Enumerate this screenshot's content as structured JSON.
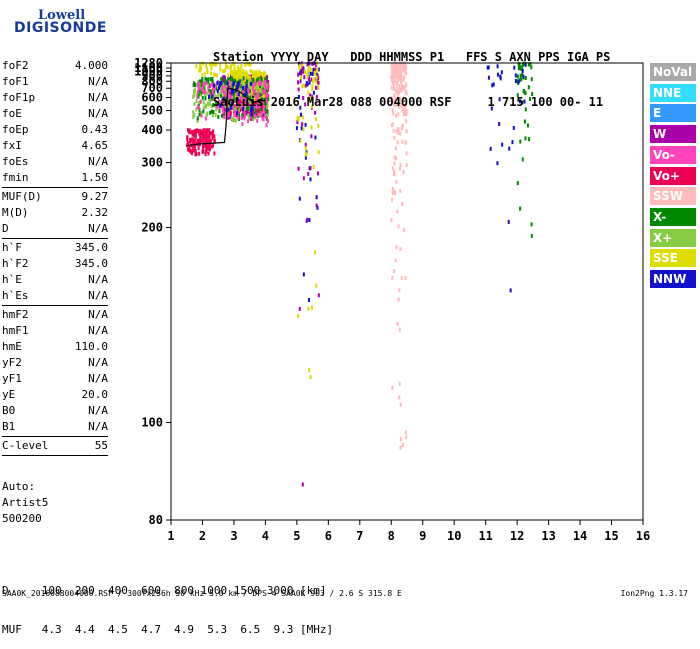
{
  "logo": {
    "line1": "Lowell",
    "line2": "DIGISONDE"
  },
  "header": {
    "line1": "Station YYYY DAY   DDD HHMMSS P1   FFS S AXN PPS IGA PS",
    "line2": "SaoLuis 2016 Mar28 088 004000 RSF     1 715 100 00- 11"
  },
  "params": [
    {
      "name": "foF2",
      "value": "4.000"
    },
    {
      "name": "foF1",
      "value": "N/A"
    },
    {
      "name": "foF1p",
      "value": "N/A"
    },
    {
      "name": "foE",
      "value": "N/A"
    },
    {
      "name": "foEp",
      "value": "0.43"
    },
    {
      "name": "fxI",
      "value": "4.65"
    },
    {
      "name": "foEs",
      "value": "N/A"
    },
    {
      "name": "fmin",
      "value": "1.50"
    },
    {
      "sep": true
    },
    {
      "name": "MUF(D)",
      "value": "9.27"
    },
    {
      "name": "M(D)",
      "value": "2.32"
    },
    {
      "name": "D",
      "value": "N/A"
    },
    {
      "sep": true
    },
    {
      "name": "h`F",
      "value": "345.0"
    },
    {
      "name": "h`F2",
      "value": "345.0"
    },
    {
      "name": "h`E",
      "value": "N/A"
    },
    {
      "name": "h`Es",
      "value": "N/A"
    },
    {
      "sep": true
    },
    {
      "name": "hmF2",
      "value": "N/A"
    },
    {
      "name": "hmF1",
      "value": "N/A"
    },
    {
      "name": "hmE",
      "value": "110.0"
    },
    {
      "name": "yF2",
      "value": "N/A"
    },
    {
      "name": "yF1",
      "value": "N/A"
    },
    {
      "name": "yE",
      "value": "20.0"
    },
    {
      "name": "B0",
      "value": "N/A"
    },
    {
      "name": "B1",
      "value": "N/A"
    },
    {
      "sep": true
    },
    {
      "name": "C-level",
      "value": "55"
    },
    {
      "sep": true
    }
  ],
  "auto": {
    "line1": "Auto:",
    "line2": "Artist5",
    "line3": "500200"
  },
  "dtable": {
    "row1": "D     100  200  400  600  800 1000 1500 3000 [km]",
    "row2": "MUF   4.3  4.4  4.5  4.7  4.9  5.3  6.5  9.3 [MHz]"
  },
  "footer": {
    "left": "SAA0K_2016088004000.RSF / 300fx256h 50 kHz 5.0 km / DPS-4 SAA0K 903 / 2.6 S 315.8 E",
    "right": "Ion2Png 1.3.17"
  },
  "legend": [
    {
      "label": "NoVal",
      "color": "#a9a9a9"
    },
    {
      "label": "NNE",
      "color": "#33ddff"
    },
    {
      "label": "E",
      "color": "#3399ff"
    },
    {
      "label": "W",
      "color": "#aa00aa"
    },
    {
      "label": "Vo-",
      "color": "#ff44bb"
    },
    {
      "label": "Vo+",
      "color": "#ee0055"
    },
    {
      "label": "SSW",
      "color": "#ffbbbb"
    },
    {
      "label": "X-",
      "color": "#008800"
    },
    {
      "label": "X+",
      "color": "#88cc44"
    },
    {
      "label": "SSE",
      "color": "#dddd00"
    },
    {
      "label": "NNW",
      "color": "#1111cc"
    }
  ],
  "chart_data": {
    "type": "scatter",
    "title": "",
    "xlabel": "",
    "ylabel": "",
    "xlim": [
      1,
      16
    ],
    "ylim": [
      80,
      1280
    ],
    "y_scale": "reciprocal",
    "x_ticks": [
      1,
      2,
      3,
      4,
      5,
      6,
      7,
      8,
      9,
      10,
      11,
      12,
      13,
      14,
      15,
      16
    ],
    "y_ticks": [
      80,
      100,
      200,
      300,
      400,
      500,
      600,
      700,
      800,
      900,
      1000,
      1100,
      1280
    ],
    "trace_line": [
      [
        1.5,
        345
      ],
      [
        1.9,
        350
      ],
      [
        2.3,
        352
      ],
      [
        2.7,
        355
      ],
      [
        2.75,
        420
      ],
      [
        2.8,
        700
      ],
      [
        3.1,
        680
      ],
      [
        3.6,
        560
      ],
      [
        4.0,
        575
      ]
    ],
    "clusters": [
      {
        "series": "Vo+",
        "x": [
          1.5,
          2.4
        ],
        "y": [
          320,
          400
        ],
        "count": 160
      },
      {
        "series": "Vo+",
        "x": [
          2.8,
          4.1
        ],
        "y": [
          470,
          800
        ],
        "count": 300
      },
      {
        "series": "W",
        "x": [
          2.6,
          4.1
        ],
        "y": [
          450,
          900
        ],
        "count": 200
      },
      {
        "series": "SSE",
        "x": [
          2.9,
          4.0
        ],
        "y": [
          580,
          1000
        ],
        "count": 220
      },
      {
        "series": "X+",
        "x": [
          1.7,
          4.1
        ],
        "y": [
          440,
          800
        ],
        "count": 200
      },
      {
        "series": "X-",
        "x": [
          1.7,
          4.1
        ],
        "y": [
          450,
          850
        ],
        "count": 140
      },
      {
        "series": "Vo-",
        "x": [
          1.8,
          4.1
        ],
        "y": [
          420,
          800
        ],
        "count": 140
      },
      {
        "series": "NNW",
        "x": [
          2.2,
          3.6
        ],
        "y": [
          470,
          780
        ],
        "count": 40
      },
      {
        "series": "SSW",
        "x": [
          8.0,
          8.5
        ],
        "y": [
          90,
          1280
        ],
        "count": 220
      },
      {
        "series": "SSE",
        "x": [
          1.8,
          3.6
        ],
        "y": [
          900,
          1280
        ],
        "count": 60
      },
      {
        "series": "NNW",
        "x": [
          5.0,
          5.7
        ],
        "y": [
          80,
          1280
        ],
        "count": 40
      },
      {
        "series": "W",
        "x": [
          5.0,
          5.7
        ],
        "y": [
          80,
          1280
        ],
        "count": 50
      },
      {
        "series": "SSE",
        "x": [
          5.0,
          5.7
        ],
        "y": [
          80,
          1280
        ],
        "count": 50
      },
      {
        "series": "X-",
        "x": [
          12.0,
          12.5
        ],
        "y": [
          150,
          1280
        ],
        "count": 45
      },
      {
        "series": "NNW",
        "x": [
          11.0,
          12.3
        ],
        "y": [
          150,
          1280
        ],
        "count": 30
      }
    ]
  }
}
